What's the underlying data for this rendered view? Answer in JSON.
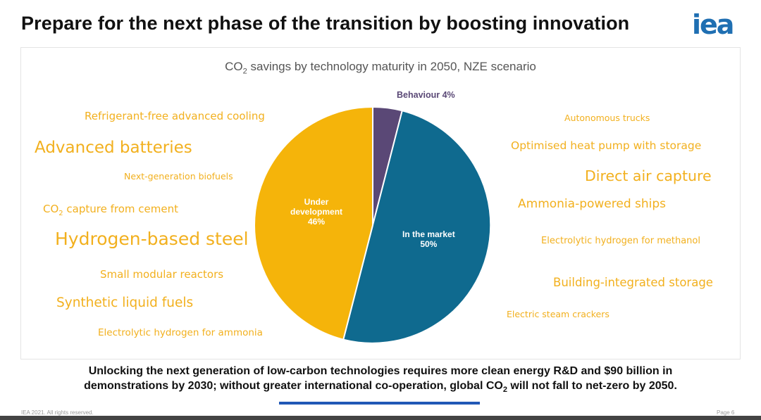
{
  "slide": {
    "title": "Prepare for the next phase of the transition by boosting innovation",
    "logo": "iea",
    "footer_left": "IEA 2021. All rights reserved.",
    "footer_right": "Page 6",
    "conclusion_line1": "Unlocking the next generation of low-carbon technologies requires more clean energy R&D and $90 billion in",
    "conclusion_line2_pre": "demonstrations by 2030; without greater international co-operation, global CO",
    "conclusion_line2_sub": "2",
    "conclusion_line2_post": " will not fall to net-zero by 2050."
  },
  "chart_data": {
    "type": "pie",
    "title_pre": "CO",
    "title_sub": "2",
    "title_post": " savings by technology maturity in 2050, NZE scenario",
    "slices": [
      {
        "label": "Behaviour",
        "value": 4,
        "display": "Behaviour 4%",
        "color": "#5a4876"
      },
      {
        "label": "In the market",
        "value": 50,
        "display": "50%",
        "color": "#0f6a8f"
      },
      {
        "label": "Under development",
        "value": 46,
        "display": "46%",
        "color": "#f5b40a"
      }
    ],
    "labels": {
      "behaviour": "Behaviour 4%",
      "market_name": "In the market",
      "market_value": "50%",
      "dev_name_1": "Under",
      "dev_name_2": "development",
      "dev_value": "46%"
    }
  },
  "technologies": {
    "left": [
      "Refrigerant-free advanced cooling",
      "Advanced batteries",
      "Next-generation biofuels",
      "CO",
      "Hydrogen-based steel",
      "Small modular reactors",
      "Synthetic liquid fuels",
      "Electrolytic hydrogen for ammonia"
    ],
    "left_co2_sub": "2",
    "left_co2_rest": " capture from cement",
    "right": [
      "Autonomous trucks",
      "Optimised heat pump with storage",
      "Direct air capture",
      "Ammonia-powered ships",
      "Electrolytic hydrogen for methanol",
      "Building-integrated storage",
      "Electric steam crackers"
    ]
  },
  "colors": {
    "tech_text": "#f2b01e",
    "logo": "#1f6fb2",
    "accent_line": "#2158b6"
  }
}
